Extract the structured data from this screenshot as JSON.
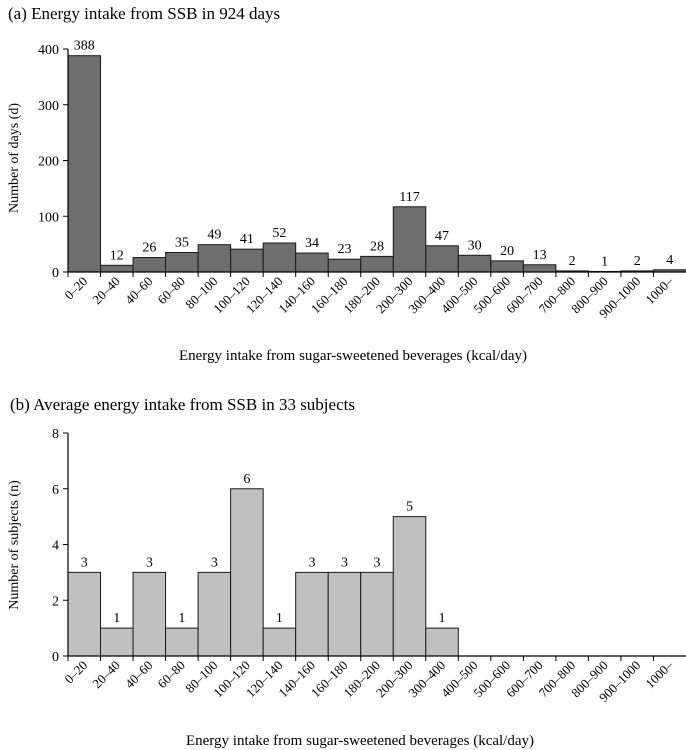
{
  "chart_data": [
    {
      "type": "bar",
      "title": "(a) Energy intake from SSB in 924 days",
      "xlabel": "Energy intake from sugar-sweetened beverages (kcal/day)",
      "ylabel": "Number of days (d)",
      "ylim": [
        0,
        400
      ],
      "yticks": [
        "0",
        "100",
        "200",
        "300",
        "400"
      ],
      "categories": [
        "0–20",
        "20–40",
        "40–60",
        "60–80",
        "80–100",
        "100–120",
        "120–140",
        "140–160",
        "160–180",
        "180–200",
        "200–300",
        "300–400",
        "400–500",
        "500–600",
        "600–700",
        "700–800",
        "800–900",
        "900–1000",
        "1000–"
      ],
      "values": [
        388,
        12,
        26,
        35,
        49,
        41,
        52,
        34,
        23,
        28,
        117,
        47,
        30,
        20,
        13,
        2,
        1,
        2,
        4
      ],
      "value_labels": [
        "388",
        "12",
        "26",
        "35",
        "49",
        "41",
        "52",
        "34",
        "23",
        "28",
        "117",
        "47",
        "30",
        "20",
        "13",
        "2",
        "1",
        "2",
        "4"
      ],
      "bar_color": "#6e6e6e",
      "grid": false,
      "legend": "none"
    },
    {
      "type": "bar",
      "title": "(b) Average energy intake from SSB in 33 subjects",
      "xlabel": "Energy intake from sugar-sweetened beverages (kcal/day)",
      "ylabel": "Number of subjects (n)",
      "ylim": [
        0,
        8
      ],
      "yticks": [
        "0",
        "2",
        "4",
        "6",
        "8"
      ],
      "categories": [
        "0–20",
        "20–40",
        "40–60",
        "60–80",
        "80–100",
        "100–120",
        "120–140",
        "140–160",
        "160–180",
        "180–200",
        "200–300",
        "300–400",
        "400–500",
        "500–600",
        "600–700",
        "700–800",
        "800–900",
        "900–1000",
        "1000–"
      ],
      "values": [
        3,
        1,
        3,
        1,
        3,
        6,
        1,
        3,
        3,
        3,
        5,
        1,
        0,
        0,
        0,
        0,
        0,
        0,
        0
      ],
      "value_labels": [
        "3",
        "1",
        "3",
        "1",
        "3",
        "6",
        "1",
        "3",
        "3",
        "3",
        "5",
        "1",
        "",
        "",
        "",
        "",
        "",
        "",
        ""
      ],
      "bar_color": "#c0c0c0",
      "grid": false,
      "legend": "none"
    }
  ]
}
